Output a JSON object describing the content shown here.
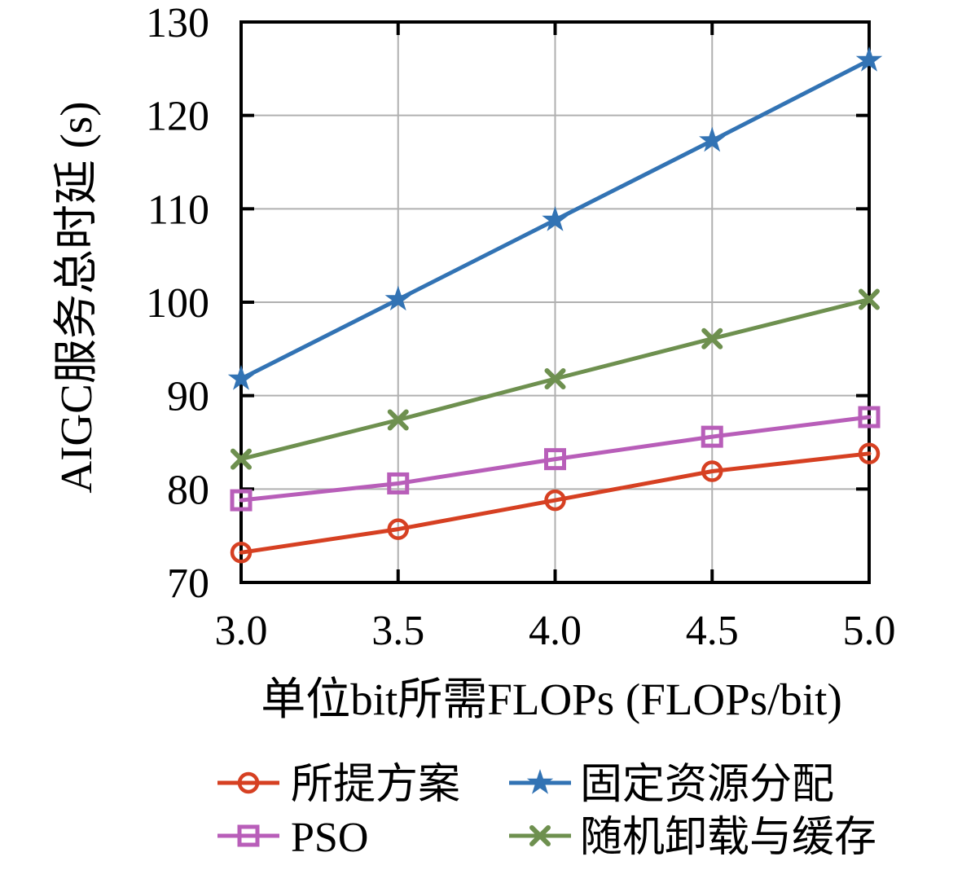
{
  "chart_data": {
    "type": "line",
    "title": "",
    "xlabel": "单位bit所需FLOPs (FLOPs/bit)",
    "ylabel": "AIGC服务总时延 (s)",
    "x": [
      3.0,
      3.5,
      4.0,
      4.5,
      5.0
    ],
    "xtick_labels": [
      "3.0",
      "3.5",
      "4.0",
      "4.5",
      "5.0"
    ],
    "yticks": [
      70,
      80,
      90,
      100,
      110,
      120,
      130
    ],
    "ytick_labels": [
      "70",
      "80",
      "90",
      "100",
      "110",
      "120",
      "130"
    ],
    "xlim": [
      3.0,
      5.0
    ],
    "ylim": [
      70,
      130
    ],
    "grid": true,
    "legend_position": "below-two-columns",
    "axis_color": "#000000",
    "grid_color": "#b0b0b0",
    "series": [
      {
        "name": "所提方案",
        "marker": "circle",
        "color": "#d64022",
        "values": [
          73.2,
          75.7,
          78.8,
          81.9,
          83.8
        ]
      },
      {
        "name": "PSO",
        "marker": "square",
        "color": "#b85eb9",
        "values": [
          78.8,
          80.6,
          83.2,
          85.6,
          87.7
        ]
      },
      {
        "name": "固定资源分配",
        "marker": "star",
        "color": "#3273b4",
        "values": [
          91.8,
          100.3,
          108.8,
          117.3,
          125.9
        ]
      },
      {
        "name": "随机卸载与缓存",
        "marker": "x",
        "color": "#6e904f",
        "values": [
          83.2,
          87.4,
          91.8,
          96.1,
          100.3
        ]
      }
    ]
  }
}
